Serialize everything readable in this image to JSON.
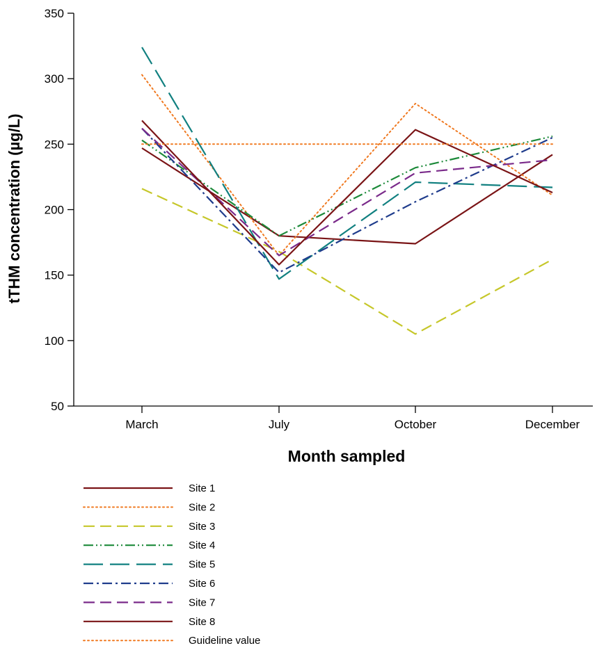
{
  "chart_data": {
    "type": "line",
    "xlabel": "Month sampled",
    "ylabel": "tTHM concentration (µg/L)",
    "categories": [
      "March",
      "July",
      "October",
      "December"
    ],
    "ylim": [
      50,
      350
    ],
    "yticks": [
      50,
      100,
      150,
      200,
      250,
      300,
      350
    ],
    "grid": false,
    "legend_position": "bottom-left",
    "series": [
      {
        "name": "Site 1",
        "values": [
          247,
          180,
          174,
          242
        ],
        "color": "#7a1416",
        "dash": "solid"
      },
      {
        "name": "Site 2",
        "values": [
          303,
          165,
          281,
          211
        ],
        "color": "#f07a22",
        "dash": "dotted"
      },
      {
        "name": "Site 3",
        "values": [
          216,
          168,
          105,
          162
        ],
        "color": "#c6c72a",
        "dash": "dashed"
      },
      {
        "name": "Site 4",
        "values": [
          253,
          180,
          232,
          256
        ],
        "color": "#1d8a3a",
        "dash": "dash-dot-dot"
      },
      {
        "name": "Site 5",
        "values": [
          324,
          147,
          221,
          217
        ],
        "color": "#118080",
        "dash": "long-dash"
      },
      {
        "name": "Site 6",
        "values": [
          262,
          152,
          206,
          255
        ],
        "color": "#1f3c8c",
        "dash": "dash-dot"
      },
      {
        "name": "Site 7",
        "values": [
          262,
          165,
          228,
          238
        ],
        "color": "#7a2a8a",
        "dash": "dashed"
      },
      {
        "name": "Site 8",
        "values": [
          268,
          158,
          261,
          213
        ],
        "color": "#7a1416",
        "dash": "solid"
      },
      {
        "name": "Guideline value",
        "values": [
          250,
          250,
          250,
          250
        ],
        "color": "#f07a22",
        "dash": "dotted"
      }
    ]
  }
}
